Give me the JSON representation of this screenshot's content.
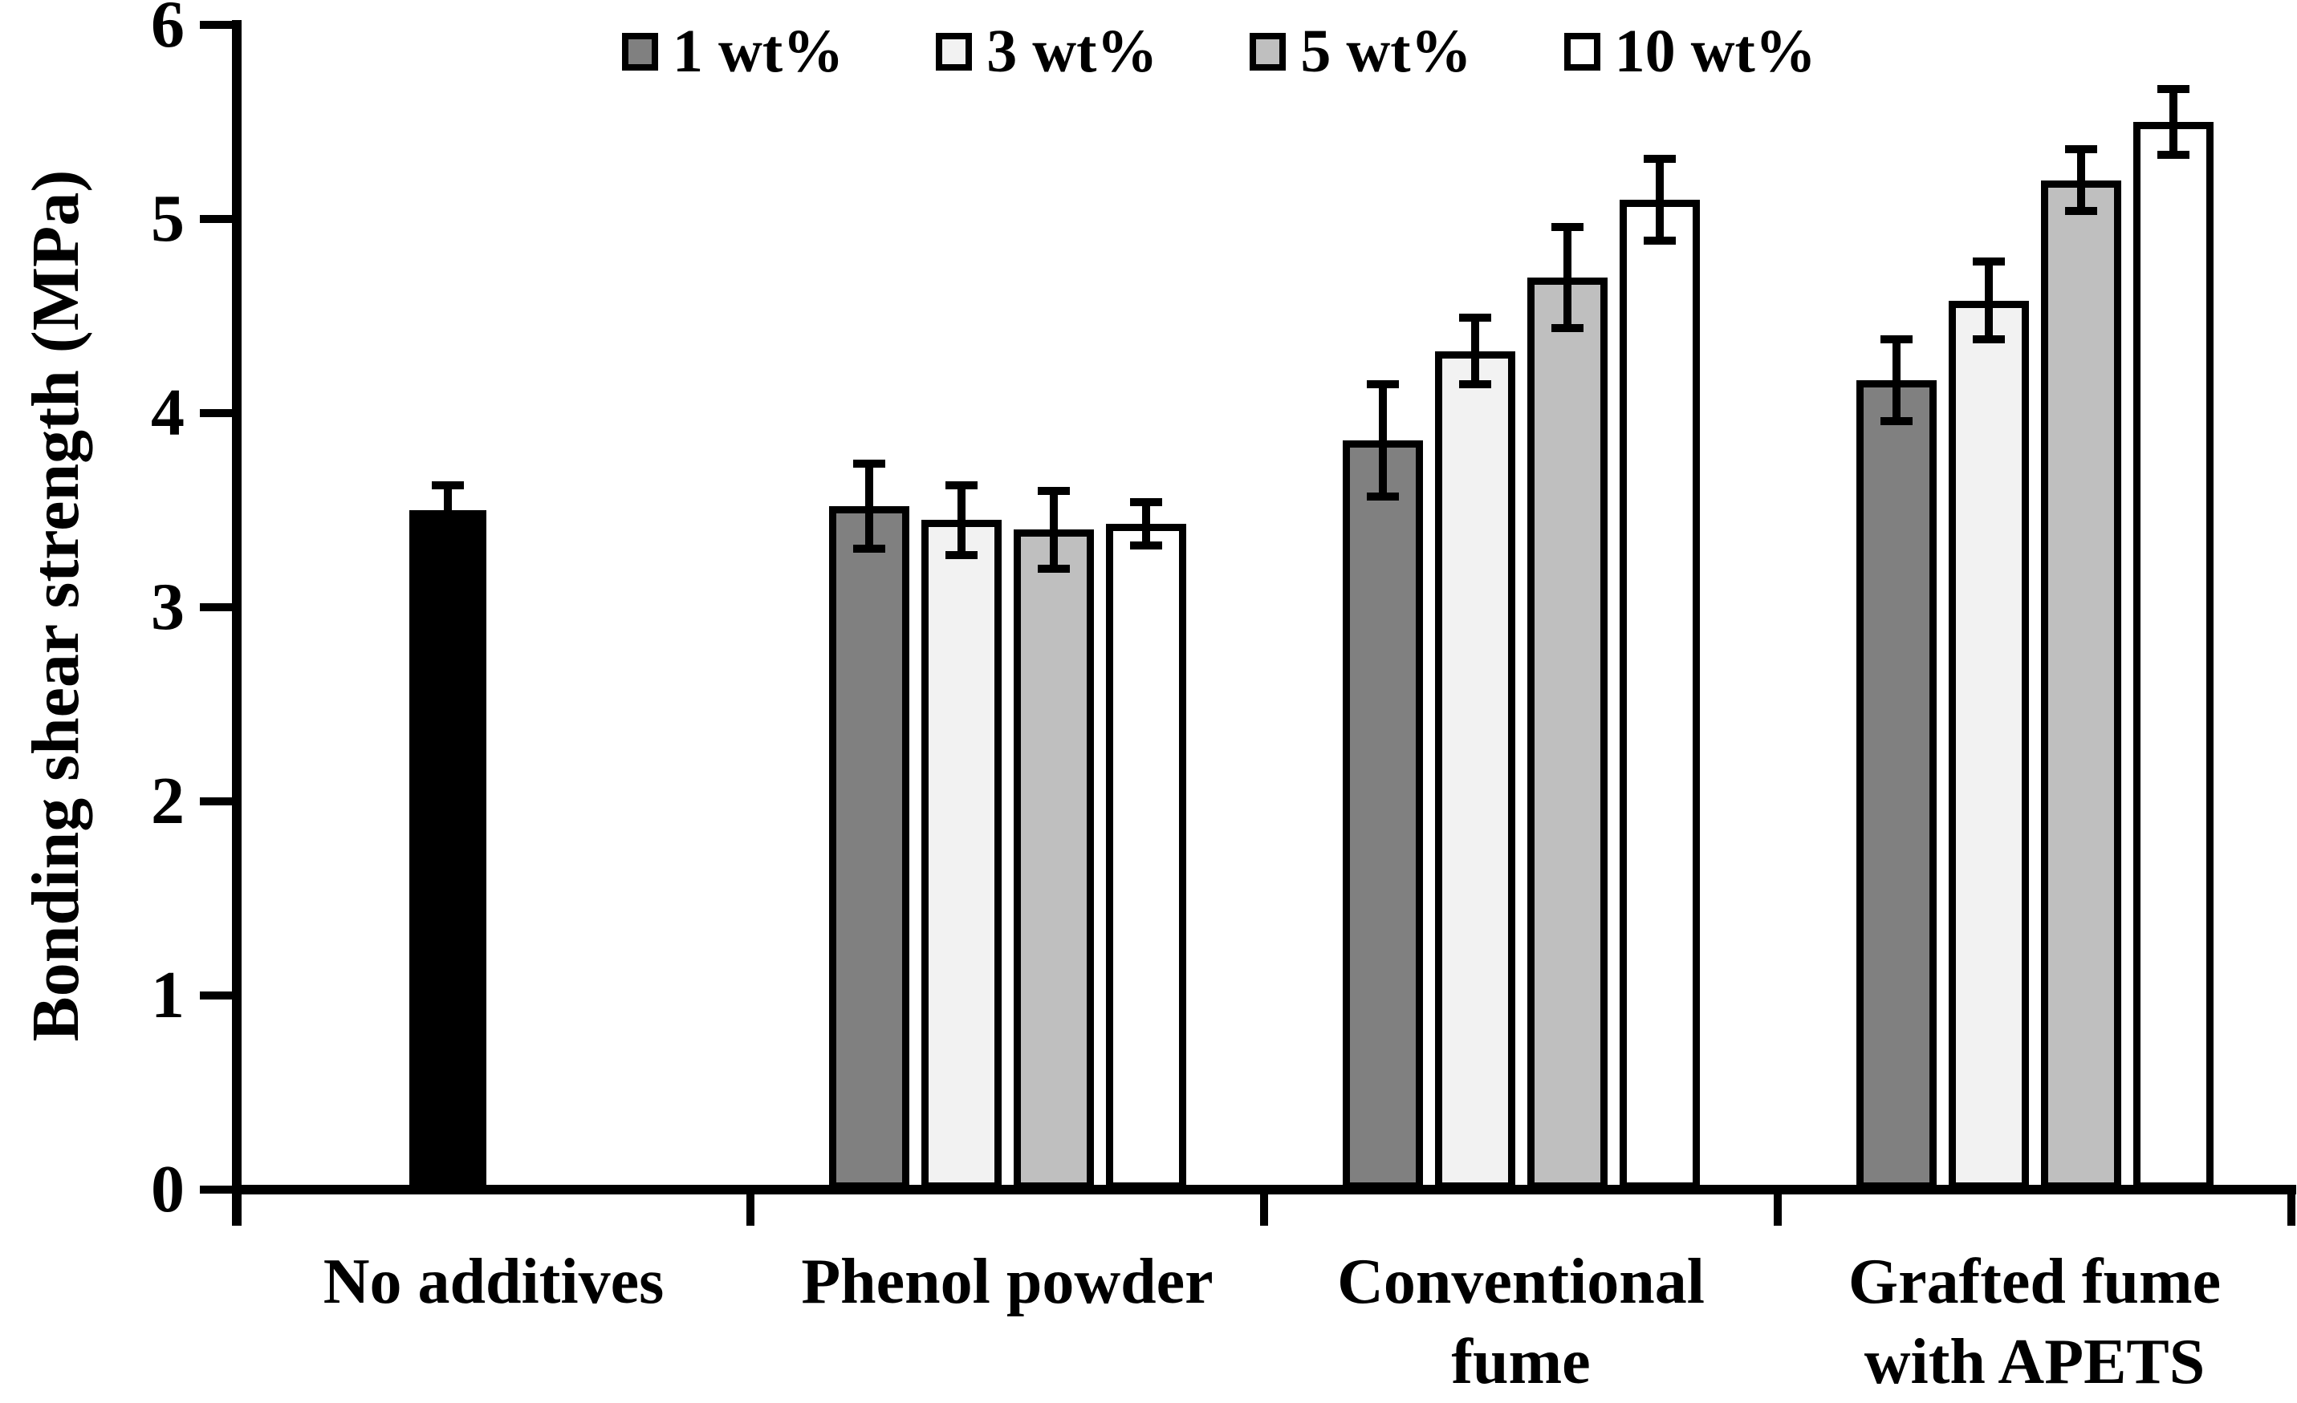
{
  "y_axis": {
    "title": "Bonding shear strength (MPa)",
    "tick_labels": [
      "0",
      "1",
      "2",
      "3",
      "4",
      "5",
      "6"
    ],
    "min": 0,
    "max": 6
  },
  "legend": {
    "items": [
      {
        "label": "1 wt%",
        "color": "#808080"
      },
      {
        "label": "3 wt%",
        "color": "#f2f2f2"
      },
      {
        "label": "5 wt%",
        "color": "#bfbfbf"
      },
      {
        "label": "10 wt%",
        "color": "#ffffff"
      }
    ]
  },
  "category_labels": [
    {
      "lines": [
        "No additives"
      ]
    },
    {
      "lines": [
        "Phenol powder"
      ]
    },
    {
      "lines": [
        "Conventional",
        "fume"
      ]
    },
    {
      "lines": [
        "Grafted fume",
        "with APETS"
      ]
    }
  ],
  "colors": {
    "control_bar": "#000000",
    "axis": "#000000",
    "text": "#000000",
    "background": "#ffffff"
  },
  "chart_data": {
    "type": "bar",
    "title": "",
    "xlabel": "",
    "ylabel": "Bonding shear strength (MPa)",
    "ylim": [
      0,
      6
    ],
    "grid": false,
    "legend_position": "top",
    "categories": [
      "No additives",
      "Phenol powder",
      "Conventional fume",
      "Grafted fume with APETS"
    ],
    "series": [
      {
        "name": "1 wt%",
        "color": "#808080",
        "values": [
          null,
          3.52,
          3.86,
          4.17
        ],
        "errors": [
          null,
          0.22,
          0.29,
          0.21
        ]
      },
      {
        "name": "3 wt%",
        "color": "#f2f2f2",
        "values": [
          null,
          3.45,
          4.32,
          4.58
        ],
        "errors": [
          null,
          0.18,
          0.17,
          0.2
        ]
      },
      {
        "name": "5 wt%",
        "color": "#bfbfbf",
        "values": [
          null,
          3.4,
          4.7,
          5.2
        ],
        "errors": [
          null,
          0.2,
          0.26,
          0.16
        ]
      },
      {
        "name": "10 wt%",
        "color": "#ffffff",
        "values": [
          null,
          3.43,
          5.1,
          5.5
        ],
        "errors": [
          null,
          0.11,
          0.21,
          0.17
        ]
      }
    ],
    "control_bar": {
      "name": "No additives (black bar)",
      "category_index": 0,
      "slot_index": 1,
      "color": "#000000",
      "value": 3.5,
      "error": 0.13
    }
  }
}
